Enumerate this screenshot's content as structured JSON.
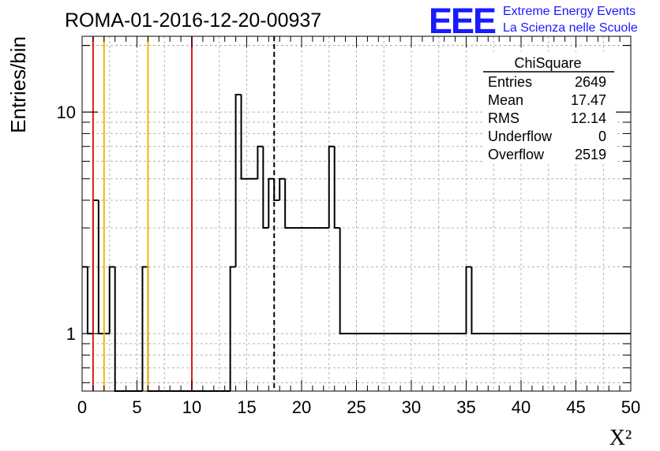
{
  "header": {
    "run_title": "ROMA-01-2016-12-20-00937",
    "logo_text": "EEE",
    "logo_line1": "Extreme Energy Events",
    "logo_line2": "La Scienza nelle Scuole",
    "logo_color": "#1a1aff"
  },
  "stats_box": {
    "title": "ChiSquare",
    "rows": [
      {
        "label": "Entries",
        "value": "2649"
      },
      {
        "label": "Mean",
        "value": "17.47"
      },
      {
        "label": "RMS",
        "value": "12.14"
      },
      {
        "label": "Underflow",
        "value": "0"
      },
      {
        "label": "Overflow",
        "value": "2519"
      }
    ]
  },
  "chart_data": {
    "type": "histogram",
    "xlabel": "X²",
    "ylabel": "Entries/bin",
    "xlim": [
      0,
      50
    ],
    "ylim": [
      0.55,
      22
    ],
    "y_scale": "log",
    "grid": true,
    "bin_width": 0.5,
    "x_ticks": [
      "0",
      "5",
      "10",
      "15",
      "20",
      "25",
      "30",
      "35",
      "40",
      "45",
      "50"
    ],
    "y_tick_labels": [
      "1",
      "10"
    ],
    "values": [
      2,
      1,
      4,
      1,
      1,
      2,
      0,
      0,
      0,
      0,
      0,
      2,
      0,
      0,
      0,
      0,
      0,
      0,
      0,
      0,
      0,
      0,
      0,
      0,
      0,
      0,
      0,
      2,
      12,
      5,
      5,
      5,
      7,
      3,
      5,
      4,
      5,
      3,
      3,
      3,
      3,
      3,
      3,
      3,
      3,
      7,
      3,
      1,
      1,
      1,
      1,
      1,
      1,
      1,
      1,
      1,
      1,
      1,
      1,
      1,
      1,
      1,
      1,
      1,
      1,
      1,
      1,
      1,
      1,
      1,
      2,
      1,
      1,
      1,
      1,
      1,
      1,
      1,
      1,
      1,
      1,
      1,
      1,
      1,
      1,
      1,
      1,
      1,
      1,
      1,
      1,
      1,
      1,
      1,
      1,
      1,
      1,
      1,
      1,
      1
    ],
    "vertical_lines": [
      {
        "x": 1,
        "color": "#e41a1c",
        "style": "solid"
      },
      {
        "x": 2,
        "color": "#f2b701",
        "style": "solid"
      },
      {
        "x": 6,
        "color": "#f2b701",
        "style": "solid"
      },
      {
        "x": 10,
        "color": "#e41a1c",
        "style": "solid"
      },
      {
        "x": 17.5,
        "color": "#000000",
        "style": "dashed"
      }
    ]
  }
}
